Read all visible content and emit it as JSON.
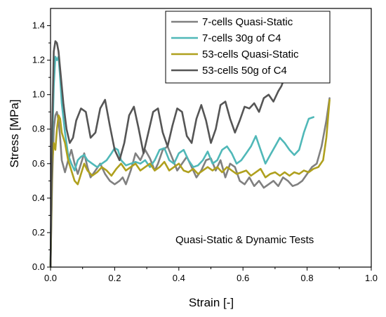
{
  "chart_data": {
    "type": "line",
    "title": "",
    "xlabel": "Strain [-]",
    "ylabel": "Stress [MPa]",
    "xlim": [
      0.0,
      1.0
    ],
    "ylim": [
      0.0,
      1.5
    ],
    "xticks": [
      "0.0",
      "0.2",
      "0.4",
      "0.6",
      "0.8",
      "1.0"
    ],
    "yticks": [
      "0.0",
      "0.2",
      "0.4",
      "0.6",
      "0.8",
      "1.0",
      "1.2",
      "1.4"
    ],
    "grid": false,
    "legend_position": "top-right",
    "annotation": "Quasi-Static & Dynamic Tests",
    "series": [
      {
        "name": "7-cells Quasi-Static",
        "color": "#808080",
        "x": [
          0.0,
          0.005,
          0.01,
          0.015,
          0.02,
          0.025,
          0.03,
          0.035,
          0.045,
          0.055,
          0.065,
          0.075,
          0.085,
          0.095,
          0.105,
          0.115,
          0.125,
          0.14,
          0.155,
          0.17,
          0.185,
          0.2,
          0.215,
          0.225,
          0.235,
          0.25,
          0.265,
          0.28,
          0.295,
          0.31,
          0.325,
          0.335,
          0.35,
          0.365,
          0.38,
          0.395,
          0.41,
          0.425,
          0.44,
          0.455,
          0.47,
          0.485,
          0.5,
          0.515,
          0.53,
          0.545,
          0.56,
          0.575,
          0.59,
          0.605,
          0.62,
          0.635,
          0.65,
          0.665,
          0.68,
          0.695,
          0.71,
          0.725,
          0.74,
          0.755,
          0.77,
          0.785,
          0.8,
          0.815,
          0.83,
          0.845,
          0.86,
          0.87
        ],
        "y": [
          0.0,
          0.5,
          0.8,
          0.88,
          0.9,
          0.85,
          0.75,
          0.62,
          0.55,
          0.62,
          0.68,
          0.6,
          0.54,
          0.6,
          0.66,
          0.58,
          0.52,
          0.56,
          0.6,
          0.54,
          0.5,
          0.48,
          0.5,
          0.52,
          0.48,
          0.56,
          0.66,
          0.62,
          0.68,
          0.63,
          0.56,
          0.6,
          0.68,
          0.7,
          0.63,
          0.56,
          0.6,
          0.64,
          0.58,
          0.52,
          0.56,
          0.62,
          0.63,
          0.56,
          0.62,
          0.52,
          0.6,
          0.58,
          0.5,
          0.48,
          0.52,
          0.47,
          0.5,
          0.46,
          0.48,
          0.5,
          0.47,
          0.52,
          0.5,
          0.47,
          0.48,
          0.5,
          0.54,
          0.58,
          0.6,
          0.7,
          0.85,
          0.98
        ]
      },
      {
        "name": "7-cells 30g of C4",
        "color": "#50B8B8",
        "x": [
          0.0,
          0.005,
          0.01,
          0.015,
          0.02,
          0.025,
          0.03,
          0.035,
          0.045,
          0.055,
          0.065,
          0.075,
          0.085,
          0.095,
          0.105,
          0.115,
          0.13,
          0.145,
          0.16,
          0.175,
          0.19,
          0.2,
          0.21,
          0.22,
          0.235,
          0.25,
          0.265,
          0.28,
          0.295,
          0.31,
          0.325,
          0.34,
          0.355,
          0.37,
          0.385,
          0.4,
          0.415,
          0.43,
          0.445,
          0.46,
          0.475,
          0.49,
          0.505,
          0.52,
          0.535,
          0.55,
          0.565,
          0.58,
          0.595,
          0.61,
          0.625,
          0.64,
          0.655,
          0.67,
          0.685,
          0.7,
          0.715,
          0.73,
          0.745,
          0.76,
          0.775,
          0.79,
          0.805,
          0.82
        ],
        "y": [
          0.0,
          0.7,
          1.05,
          1.22,
          1.2,
          1.22,
          1.1,
          0.95,
          0.78,
          0.65,
          0.6,
          0.56,
          0.62,
          0.64,
          0.65,
          0.62,
          0.6,
          0.58,
          0.6,
          0.62,
          0.66,
          0.69,
          0.68,
          0.62,
          0.59,
          0.6,
          0.61,
          0.6,
          0.62,
          0.58,
          0.62,
          0.68,
          0.69,
          0.62,
          0.6,
          0.66,
          0.68,
          0.62,
          0.58,
          0.59,
          0.62,
          0.67,
          0.6,
          0.62,
          0.68,
          0.7,
          0.66,
          0.6,
          0.62,
          0.66,
          0.7,
          0.76,
          0.68,
          0.6,
          0.65,
          0.7,
          0.75,
          0.72,
          0.68,
          0.65,
          0.68,
          0.78,
          0.86,
          0.87
        ]
      },
      {
        "name": "53-cells Quasi-Static",
        "color": "#AFA01E",
        "x": [
          0.0,
          0.005,
          0.01,
          0.015,
          0.02,
          0.025,
          0.03,
          0.035,
          0.045,
          0.055,
          0.065,
          0.075,
          0.085,
          0.095,
          0.105,
          0.115,
          0.13,
          0.145,
          0.16,
          0.175,
          0.19,
          0.205,
          0.22,
          0.235,
          0.25,
          0.265,
          0.28,
          0.295,
          0.31,
          0.325,
          0.34,
          0.355,
          0.37,
          0.385,
          0.4,
          0.415,
          0.43,
          0.445,
          0.46,
          0.475,
          0.49,
          0.505,
          0.52,
          0.535,
          0.55,
          0.565,
          0.58,
          0.595,
          0.61,
          0.625,
          0.64,
          0.655,
          0.67,
          0.685,
          0.7,
          0.715,
          0.73,
          0.745,
          0.76,
          0.775,
          0.79,
          0.805,
          0.82,
          0.835,
          0.85,
          0.86,
          0.87
        ],
        "y": [
          0.0,
          0.6,
          0.72,
          0.68,
          0.8,
          0.88,
          0.86,
          0.78,
          0.72,
          0.62,
          0.56,
          0.5,
          0.48,
          0.54,
          0.6,
          0.56,
          0.53,
          0.55,
          0.58,
          0.56,
          0.53,
          0.57,
          0.6,
          0.56,
          0.58,
          0.6,
          0.56,
          0.58,
          0.6,
          0.56,
          0.58,
          0.61,
          0.56,
          0.58,
          0.6,
          0.56,
          0.55,
          0.57,
          0.54,
          0.56,
          0.58,
          0.56,
          0.58,
          0.55,
          0.58,
          0.56,
          0.54,
          0.55,
          0.56,
          0.53,
          0.55,
          0.57,
          0.52,
          0.54,
          0.55,
          0.53,
          0.55,
          0.53,
          0.55,
          0.54,
          0.56,
          0.55,
          0.57,
          0.58,
          0.62,
          0.75,
          0.97
        ]
      },
      {
        "name": "53-cells 50g of C4",
        "color": "#555555",
        "x": [
          0.0,
          0.005,
          0.01,
          0.015,
          0.02,
          0.025,
          0.03,
          0.04,
          0.05,
          0.06,
          0.07,
          0.08,
          0.095,
          0.11,
          0.125,
          0.14,
          0.155,
          0.17,
          0.185,
          0.2,
          0.215,
          0.23,
          0.245,
          0.26,
          0.275,
          0.29,
          0.305,
          0.32,
          0.335,
          0.35,
          0.365,
          0.38,
          0.395,
          0.41,
          0.425,
          0.44,
          0.455,
          0.47,
          0.485,
          0.5,
          0.515,
          0.53,
          0.545,
          0.56,
          0.575,
          0.59,
          0.605,
          0.62,
          0.635,
          0.65,
          0.665,
          0.68,
          0.695,
          0.71,
          0.72,
          0.73
        ],
        "y": [
          0.0,
          0.8,
          1.25,
          1.31,
          1.3,
          1.25,
          1.15,
          0.95,
          0.8,
          0.72,
          0.75,
          0.85,
          0.92,
          0.9,
          0.75,
          0.78,
          0.92,
          0.97,
          0.82,
          0.68,
          0.62,
          0.72,
          0.88,
          0.93,
          0.8,
          0.66,
          0.78,
          0.9,
          0.92,
          0.78,
          0.7,
          0.82,
          0.92,
          0.9,
          0.76,
          0.72,
          0.86,
          0.94,
          0.85,
          0.72,
          0.8,
          0.94,
          0.96,
          0.86,
          0.78,
          0.85,
          0.93,
          0.92,
          0.95,
          0.9,
          0.98,
          1.0,
          0.96,
          1.02,
          1.05,
          1.1
        ]
      }
    ]
  }
}
